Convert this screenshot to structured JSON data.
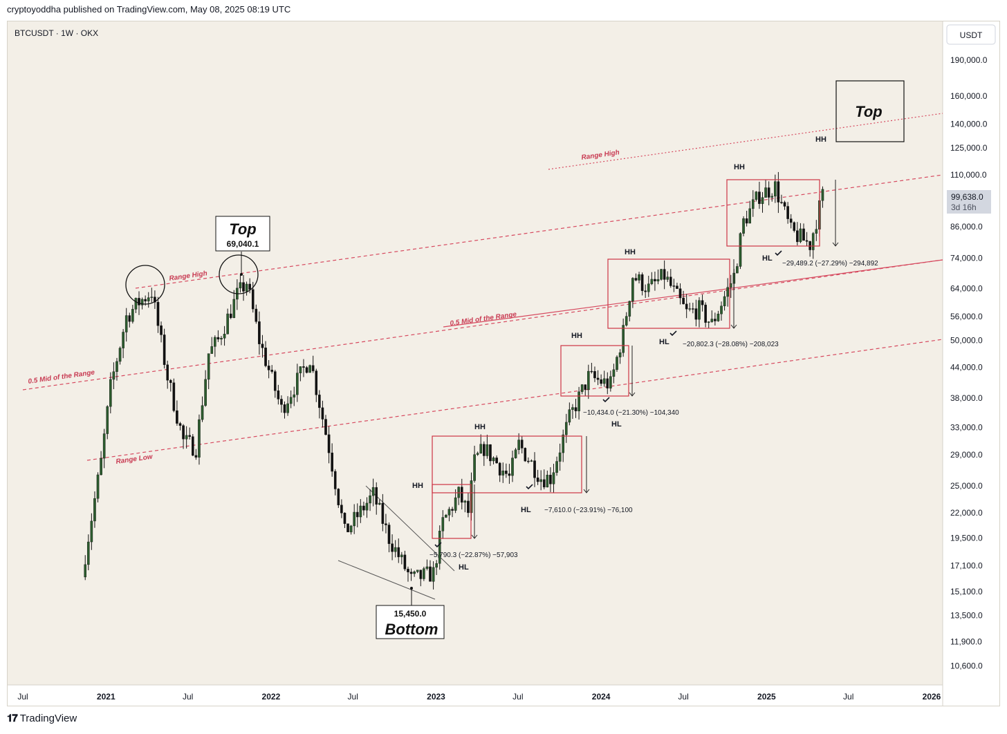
{
  "header": {
    "text": "cryptoyoddha published on TradingView.com, May 08, 2025 08:19 UTC"
  },
  "footer": {
    "brand": "TradingView"
  },
  "colors": {
    "background": "#f3efe7",
    "candle_up": "#2c5c2e",
    "candle_down": "#111111",
    "range_line": "#d6485e",
    "box": "#cc3344",
    "axis_text": "#131722"
  },
  "chart_data": {
    "type": "candlestick",
    "symbol_label": "BTCUSDT · 1W · OKX",
    "currency": "USDT",
    "scale": "log",
    "y_ticks": [
      190000,
      160000,
      140000,
      125000,
      110000,
      86000,
      74000,
      64000,
      56000,
      50000,
      44000,
      38000,
      33000,
      29000,
      25000,
      22000,
      19500,
      17100,
      15100,
      13500,
      11900,
      10600
    ],
    "y_tick_labels": [
      "190,000.0",
      "160,000.0",
      "140,000.0",
      "125,000.0",
      "110,000.0",
      "86,000.0",
      "74,000.0",
      "64,000.0",
      "56,000.0",
      "50,000.0",
      "44,000.0",
      "38,000.0",
      "33,000.0",
      "29,000.0",
      "25,000.0",
      "22,000.0",
      "19,500.0",
      "17,100.0",
      "15,100.0",
      "13,500.0",
      "11,900.0",
      "10,600.0"
    ],
    "x_ticks": [
      {
        "label": "Jul",
        "date": "2020-07-01"
      },
      {
        "label": "2021",
        "date": "2021-01-01"
      },
      {
        "label": "Jul",
        "date": "2021-07-01"
      },
      {
        "label": "2022",
        "date": "2022-01-01"
      },
      {
        "label": "Jul",
        "date": "2022-07-01"
      },
      {
        "label": "2023",
        "date": "2023-01-01"
      },
      {
        "label": "Jul",
        "date": "2023-07-01"
      },
      {
        "label": "2024",
        "date": "2024-01-01"
      },
      {
        "label": "Jul",
        "date": "2024-07-01"
      },
      {
        "label": "2025",
        "date": "2025-01-01"
      },
      {
        "label": "Jul",
        "date": "2025-07-01"
      },
      {
        "label": "2026",
        "date": "2026-01-01"
      }
    ],
    "current_price": {
      "value": 99638,
      "label": "99,638.0",
      "countdown": "3d 16h"
    },
    "price_path": [
      {
        "date": "2020-11-16",
        "close": 18000
      },
      {
        "date": "2020-12-21",
        "close": 28000
      },
      {
        "date": "2021-01-11",
        "close": 40000
      },
      {
        "date": "2021-02-15",
        "close": 56000
      },
      {
        "date": "2021-03-15",
        "close": 60000
      },
      {
        "date": "2021-04-12",
        "close": 63000
      },
      {
        "date": "2021-05-17",
        "close": 42000
      },
      {
        "date": "2021-06-21",
        "close": 31000
      },
      {
        "date": "2021-07-19",
        "close": 30000
      },
      {
        "date": "2021-08-16",
        "close": 47000
      },
      {
        "date": "2021-09-06",
        "close": 50000
      },
      {
        "date": "2021-10-18",
        "close": 62000
      },
      {
        "date": "2021-11-08",
        "close": 66000
      },
      {
        "date": "2021-12-06",
        "close": 50000
      },
      {
        "date": "2022-01-24",
        "close": 36000
      },
      {
        "date": "2022-03-28",
        "close": 46000
      },
      {
        "date": "2022-05-09",
        "close": 30000
      },
      {
        "date": "2022-06-13",
        "close": 20000
      },
      {
        "date": "2022-08-15",
        "close": 24000
      },
      {
        "date": "2022-09-19",
        "close": 19500
      },
      {
        "date": "2022-11-07",
        "close": 16000
      },
      {
        "date": "2022-12-26",
        "close": 16500
      },
      {
        "date": "2023-01-16",
        "close": 21000
      },
      {
        "date": "2023-02-20",
        "close": 24000
      },
      {
        "date": "2023-03-13",
        "close": 22000
      },
      {
        "date": "2023-03-27",
        "close": 28000
      },
      {
        "date": "2023-04-17",
        "close": 30000
      },
      {
        "date": "2023-06-12",
        "close": 26000
      },
      {
        "date": "2023-07-03",
        "close": 30500
      },
      {
        "date": "2023-08-21",
        "close": 26000
      },
      {
        "date": "2023-09-11",
        "close": 26000
      },
      {
        "date": "2023-10-23",
        "close": 34500
      },
      {
        "date": "2023-12-04",
        "close": 42000
      },
      {
        "date": "2024-01-22",
        "close": 40500
      },
      {
        "date": "2024-02-19",
        "close": 52000
      },
      {
        "date": "2024-03-11",
        "close": 68000
      },
      {
        "date": "2024-04-15",
        "close": 64000
      },
      {
        "date": "2024-05-20",
        "close": 68000
      },
      {
        "date": "2024-07-08",
        "close": 57000
      },
      {
        "date": "2024-08-05",
        "close": 58000
      },
      {
        "date": "2024-09-02",
        "close": 54000
      },
      {
        "date": "2024-10-21",
        "close": 68000
      },
      {
        "date": "2024-11-11",
        "close": 88000
      },
      {
        "date": "2024-12-16",
        "close": 100000
      },
      {
        "date": "2025-01-20",
        "close": 104000
      },
      {
        "date": "2025-02-24",
        "close": 84000
      },
      {
        "date": "2025-04-07",
        "close": 79000
      },
      {
        "date": "2025-05-05",
        "close": 99638
      }
    ],
    "annotations": {
      "top_2021": {
        "title": "Top",
        "value": "69,040.1"
      },
      "bottom_2022": {
        "title": "Bottom",
        "value": "15,450.0"
      },
      "top_future": {
        "title": "Top"
      },
      "range_high_label": "Range High",
      "mid_range_label": "0.5 Mid of the Range",
      "range_low_label": "Range Low",
      "hh": "HH",
      "hl": "HL",
      "measures": [
        "−5,790.3 (−22.87%) −57,903",
        "−7,610.0 (−23.91%) −76,100",
        "−10,434.0 (−21.30%) −104,340",
        "−20,802.3 (−28.08%) −208,023",
        "−29,489.2 (−27.29%) −294,892"
      ]
    }
  }
}
